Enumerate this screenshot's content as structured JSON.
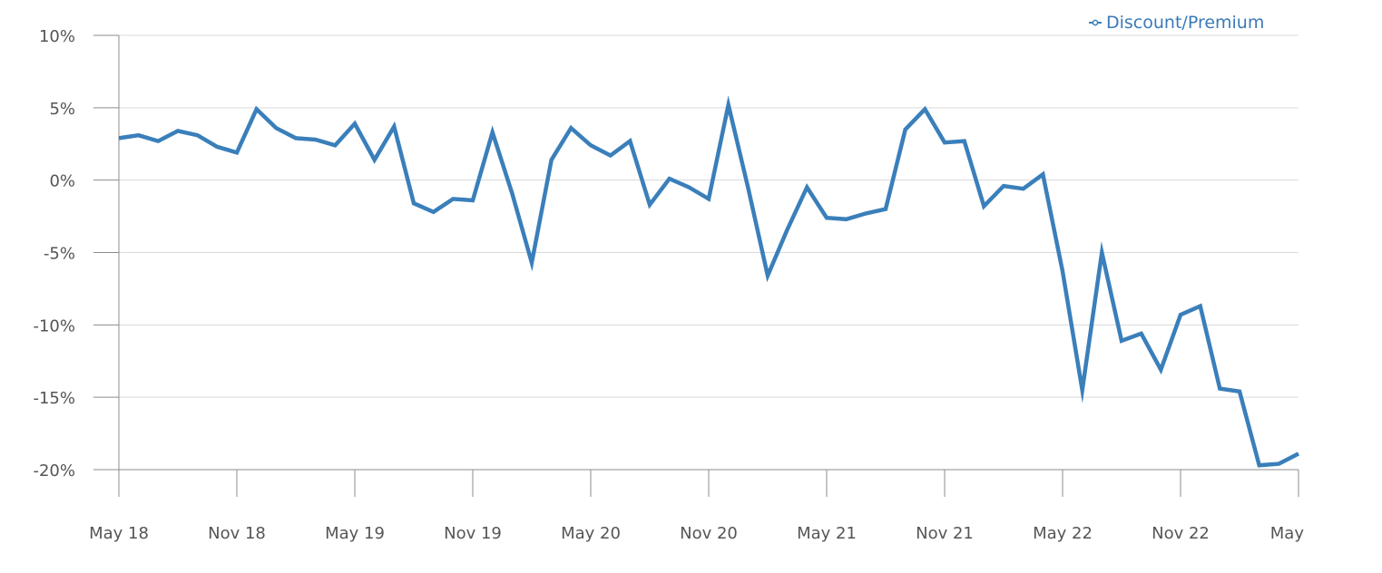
{
  "chart_data": {
    "type": "line",
    "title": "",
    "xlabel": "",
    "ylabel": "",
    "ylim": [
      -20,
      10
    ],
    "y_ticks": [
      10,
      5,
      0,
      -5,
      -10,
      -15,
      -20
    ],
    "y_tick_labels": [
      "10%",
      "5%",
      "0%",
      "-5%",
      "-10%",
      "-15%",
      "-20%"
    ],
    "x_tick_labels": [
      "May 18",
      "Nov 18",
      "May 19",
      "Nov 19",
      "May 20",
      "Nov 20",
      "May 21",
      "Nov 21",
      "May 22",
      "Nov 22",
      "May"
    ],
    "x_tick_months": [
      0,
      6,
      12,
      18,
      24,
      30,
      36,
      42,
      48,
      54,
      60
    ],
    "grid": true,
    "legend_position": "top-right",
    "series_color": "#3a7fba",
    "series": [
      {
        "name": "Discount/Premium",
        "x": [
          0,
          1,
          2,
          3,
          4,
          5,
          6,
          7,
          8,
          9,
          10,
          11,
          12,
          13,
          14,
          15,
          16,
          17,
          18,
          19,
          20,
          21,
          22,
          23,
          24,
          25,
          26,
          27,
          28,
          29,
          30,
          31,
          32,
          33,
          34,
          35,
          36,
          37,
          38,
          39,
          40,
          41,
          42,
          43,
          44,
          45,
          46,
          47,
          48,
          49,
          50,
          51,
          52,
          53,
          54,
          55,
          56,
          57,
          58,
          59,
          60
        ],
        "values": [
          2.9,
          3.1,
          2.7,
          3.4,
          3.1,
          2.3,
          1.9,
          4.9,
          3.6,
          2.9,
          2.8,
          2.4,
          3.9,
          1.4,
          3.7,
          -1.6,
          -2.2,
          -1.3,
          -1.4,
          3.3,
          -0.9,
          -5.7,
          1.4,
          3.6,
          2.4,
          1.7,
          2.7,
          -1.7,
          0.1,
          -0.5,
          -1.3,
          5.2,
          -0.5,
          -6.6,
          -3.4,
          -0.5,
          -2.6,
          -2.7,
          -2.3,
          -2.0,
          3.5,
          4.9,
          2.6,
          2.7,
          -1.8,
          -0.4,
          -0.6,
          0.4,
          -6.3,
          -14.5,
          -5.0,
          -11.1,
          -10.6,
          -13.1,
          -9.3,
          -8.7,
          -14.4,
          -14.6,
          -19.7,
          -19.6,
          -18.9
        ]
      }
    ]
  }
}
